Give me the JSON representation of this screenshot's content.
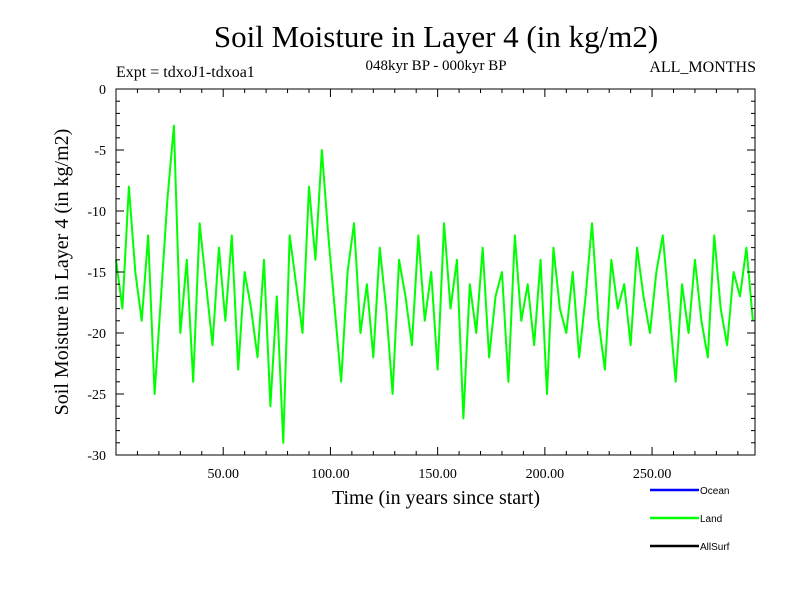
{
  "chart_data": {
    "type": "line",
    "title": "Soil Moisture in Layer 4 (in kg/m2)",
    "subtitle": "048kyr BP - 000kyr BP",
    "experiment": "Expt = tdxoJ1-tdxoa1",
    "period": "ALL_MONTHS",
    "xlabel": "Time (in years since start)",
    "ylabel": "Soil Moisture in Layer 4 (in kg/m2)",
    "xlim": [
      0,
      298
    ],
    "ylim": [
      -30,
      0
    ],
    "x_ticks": [
      50,
      100,
      150,
      200,
      250
    ],
    "x_tick_labels": [
      "50.00",
      "100.00",
      "150.00",
      "200.00",
      "250.00"
    ],
    "y_ticks": [
      0,
      -5,
      -10,
      -15,
      -20,
      -25,
      -30
    ],
    "y_tick_labels": [
      "0",
      "-5",
      "-10",
      "-15",
      "-20",
      "-25",
      "-30"
    ],
    "grid": false,
    "legend_position": "bottom-right",
    "series": [
      {
        "name": "Land",
        "color": "#00ff00",
        "x": [
          0,
          3,
          6,
          9,
          12,
          15,
          18,
          21,
          24,
          27,
          30,
          33,
          36,
          39,
          42,
          45,
          48,
          51,
          54,
          57,
          60,
          63,
          66,
          69,
          72,
          75,
          78,
          81,
          84,
          87,
          90,
          93,
          96,
          99,
          102,
          105,
          108,
          111,
          114,
          117,
          120,
          123,
          126,
          129,
          132,
          135,
          138,
          141,
          144,
          147,
          150,
          153,
          156,
          159,
          162,
          165,
          168,
          171,
          174,
          177,
          180,
          183,
          186,
          189,
          192,
          195,
          198,
          201,
          204,
          207,
          210,
          213,
          216,
          219,
          222,
          225,
          228,
          231,
          234,
          237,
          240,
          243,
          246,
          249,
          252,
          255,
          258,
          261,
          264,
          267,
          270,
          273,
          276,
          279,
          282,
          285,
          288,
          291,
          294,
          297
        ],
        "values": [
          -14,
          -18,
          -8,
          -15,
          -19,
          -12,
          -25,
          -17,
          -9,
          -3,
          -20,
          -14,
          -24,
          -11,
          -16,
          -21,
          -13,
          -19,
          -12,
          -23,
          -15,
          -18,
          -22,
          -14,
          -26,
          -17,
          -29,
          -12,
          -16,
          -20,
          -8,
          -14,
          -5,
          -12,
          -18,
          -24,
          -15,
          -11,
          -20,
          -16,
          -22,
          -13,
          -18,
          -25,
          -14,
          -17,
          -21,
          -12,
          -19,
          -15,
          -23,
          -11,
          -18,
          -14,
          -27,
          -16,
          -20,
          -13,
          -22,
          -17,
          -15,
          -24,
          -12,
          -19,
          -16,
          -21,
          -14,
          -25,
          -13,
          -18,
          -20,
          -15,
          -22,
          -17,
          -11,
          -19,
          -23,
          -14,
          -18,
          -16,
          -21,
          -13,
          -17,
          -20,
          -15,
          -12,
          -18,
          -24,
          -16,
          -20,
          -14,
          -19,
          -22,
          -12,
          -18,
          -21,
          -15,
          -17,
          -13,
          -19
        ]
      },
      {
        "name": "Ocean",
        "color": "#0000ff",
        "x": [],
        "values": []
      },
      {
        "name": "AllSurf",
        "color": "#000000",
        "x": [],
        "values": []
      }
    ],
    "legend": [
      {
        "name": "Ocean",
        "color": "#0000ff"
      },
      {
        "name": "Land",
        "color": "#00ff00"
      },
      {
        "name": "AllSurf",
        "color": "#000000"
      }
    ]
  }
}
